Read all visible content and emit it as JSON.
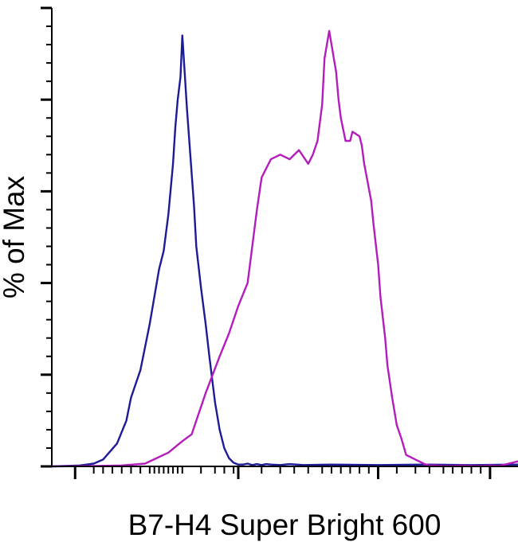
{
  "chart_data": {
    "type": "line",
    "xlabel": "B7-H4 Super Bright 600",
    "ylabel": "% of Max",
    "x_scale": "log",
    "xlim": [
      0,
      100
    ],
    "ylim": [
      0,
      100
    ],
    "grid": false,
    "legend": "none",
    "y_major_ticks": [
      0,
      20,
      40,
      60,
      80,
      100
    ],
    "y_minor_ticks": [
      4,
      8,
      12,
      16,
      24,
      28,
      32,
      36,
      44,
      48,
      52,
      56,
      64,
      68,
      72,
      76,
      84,
      88,
      92,
      96
    ],
    "x_major_ticks": [
      5,
      40,
      70,
      94
    ],
    "x_minor_ticks": [
      9,
      11,
      13,
      15,
      17,
      19,
      21,
      22,
      23,
      24,
      25,
      26,
      27,
      28,
      32,
      35,
      37,
      39,
      45,
      49,
      52,
      55,
      58,
      60,
      62,
      64,
      66,
      68,
      74,
      78,
      81,
      84,
      86,
      88,
      90,
      92
    ],
    "series": [
      {
        "color": "#1e1b96",
        "x": [
          0,
          6,
          9,
          11,
          14,
          16,
          17,
          19,
          21,
          23,
          24,
          25,
          26,
          26.5,
          27,
          27.6,
          28,
          28.5,
          29,
          30.5,
          31,
          32,
          33,
          33.8,
          35,
          36,
          37,
          38,
          39,
          40,
          41,
          42,
          43,
          44,
          45,
          46,
          47,
          49,
          51,
          54,
          60,
          70,
          80,
          90,
          100
        ],
        "y": [
          0,
          0.2,
          0.6,
          1.5,
          5,
          10,
          15,
          21,
          31,
          43,
          47,
          55,
          66,
          74,
          80,
          85,
          94,
          86,
          78,
          57,
          48,
          39,
          31,
          24,
          14,
          8,
          4,
          1.8,
          0.8,
          0.4,
          0.4,
          0.6,
          0.3,
          0.5,
          0.3,
          0.5,
          0.4,
          0.3,
          0.5,
          0.3,
          0.4,
          0.3,
          0.4,
          0.3,
          0.4
        ]
      },
      {
        "color": "#b41dbb",
        "x": [
          0,
          10,
          15,
          20,
          25,
          28,
          30,
          33,
          36,
          38,
          40,
          42,
          44,
          45,
          47,
          49,
          51,
          53,
          55,
          56,
          57,
          58,
          58.5,
          59.5,
          61,
          61.5,
          62,
          63,
          64,
          64.5,
          66,
          66.5,
          67,
          68.5,
          69,
          70,
          70.5,
          71.5,
          72,
          73,
          74,
          75,
          76,
          78,
          80,
          81,
          82,
          84,
          86,
          88,
          90,
          92,
          94,
          96,
          98,
          100
        ],
        "y": [
          0,
          0.1,
          0.2,
          0.6,
          3,
          5.5,
          7,
          16,
          24,
          29,
          35,
          40,
          56,
          63,
          67,
          68,
          67,
          69,
          66,
          68,
          71,
          79,
          89,
          95,
          86,
          80,
          76,
          71,
          71,
          73,
          72,
          70,
          66,
          58,
          53,
          44,
          37,
          28,
          22,
          15,
          9,
          6,
          2.5,
          1.5,
          0.5,
          0.2,
          0.2,
          0.1,
          0.1,
          0.2,
          0.1,
          0.1,
          0.2,
          0.1,
          0.6,
          1.1
        ]
      }
    ]
  }
}
